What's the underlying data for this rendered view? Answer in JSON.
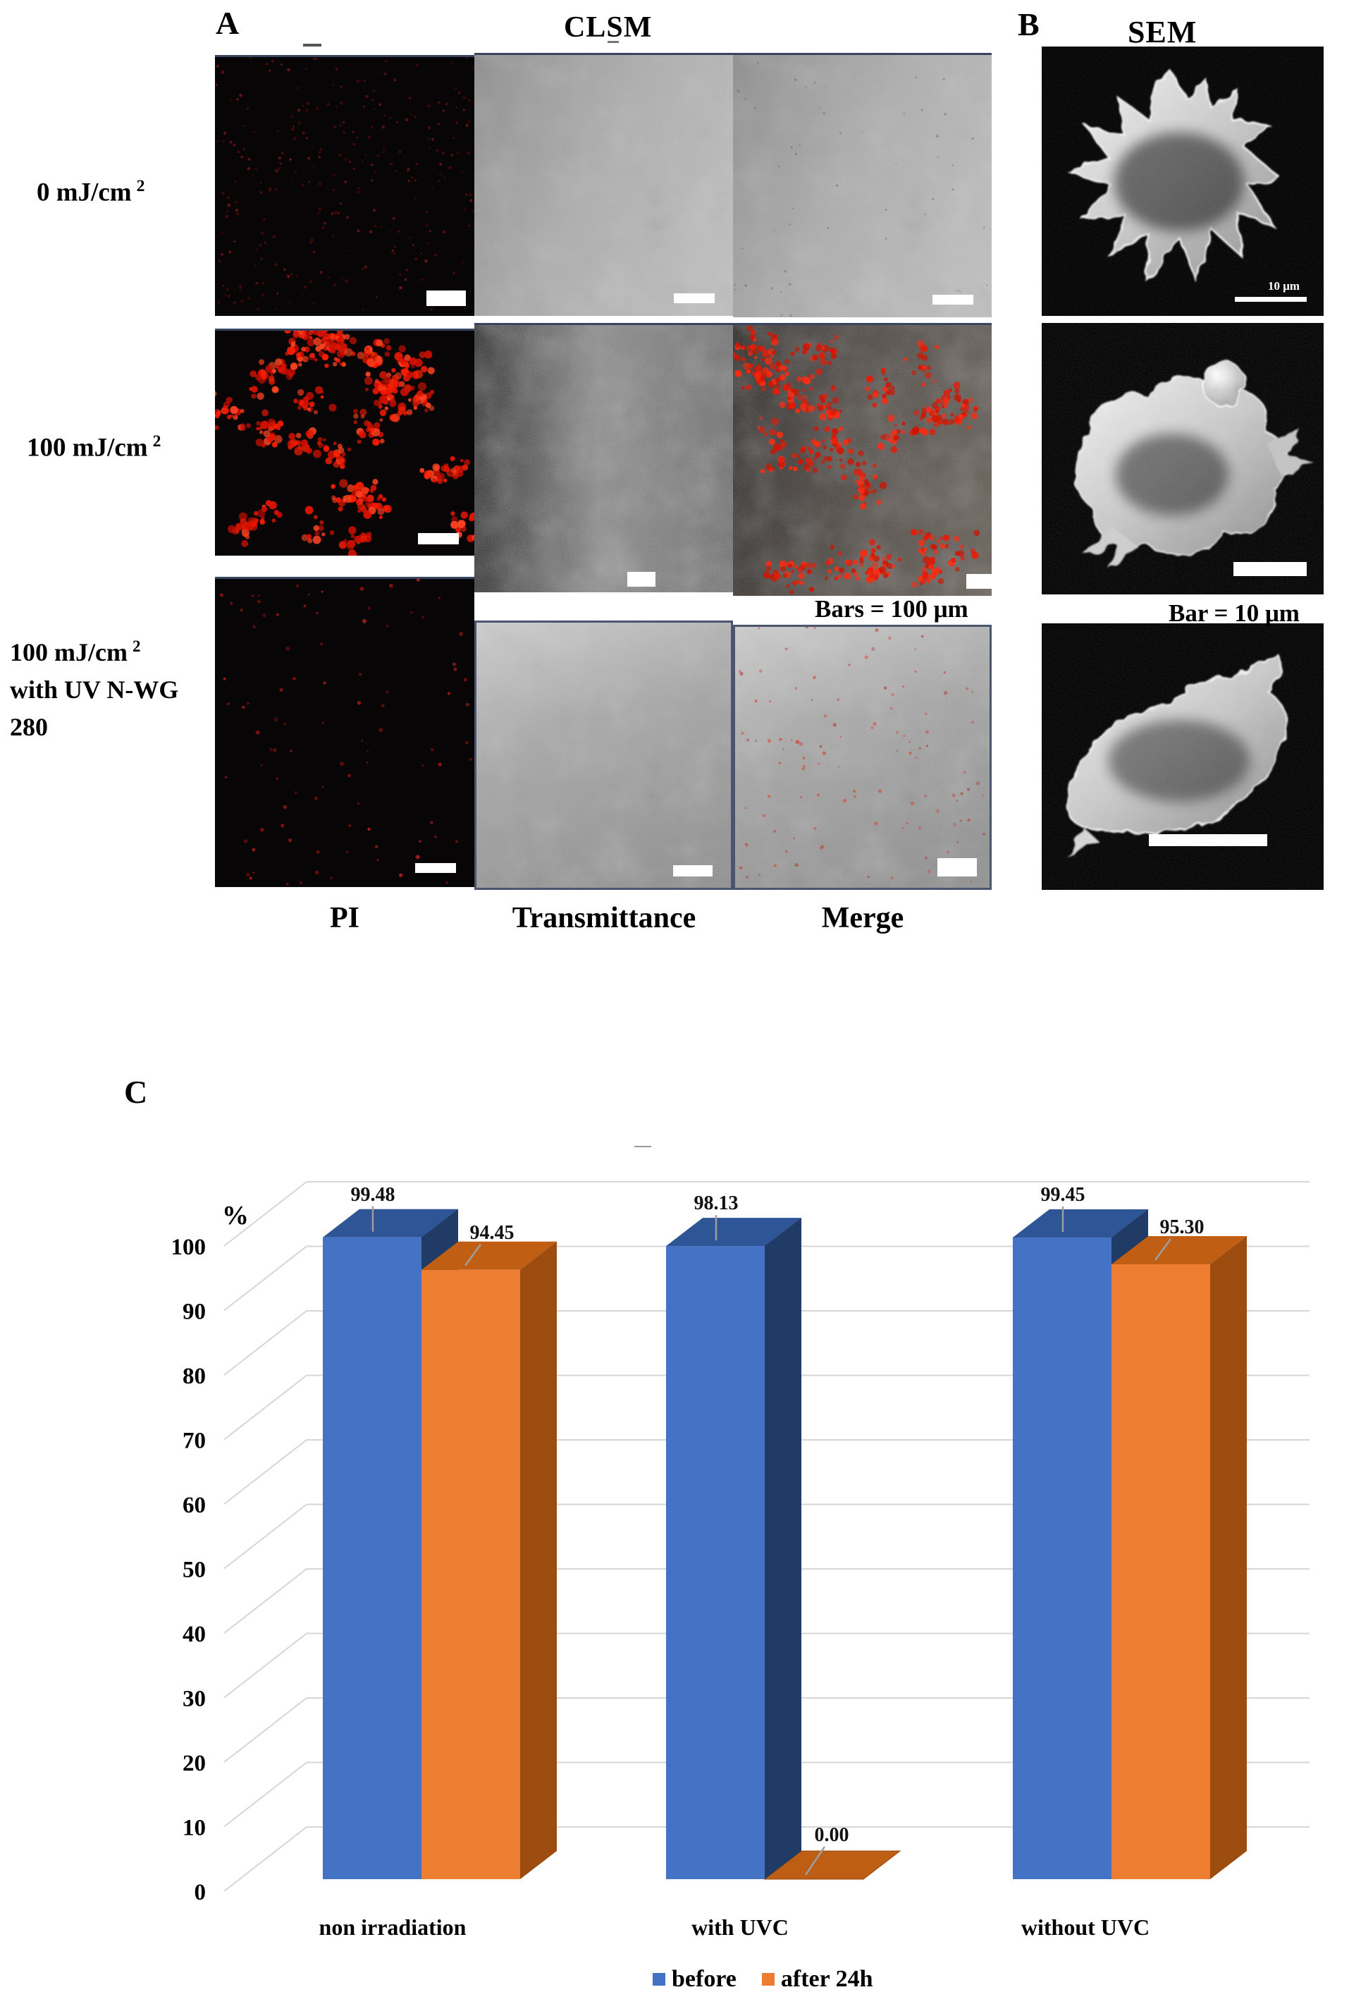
{
  "figure": {
    "panel_a_label": "A",
    "clsm_title": "CLSM",
    "panel_b_label": "B",
    "sem_title": "SEM",
    "panel_c_label": "C",
    "row_labels": [
      {
        "dose": "0 mJ/cm",
        "sup": "2"
      },
      {
        "dose": "100 mJ/cm",
        "sup": "2"
      },
      {
        "dose": "100 mJ/cm",
        "sup": "2",
        "line2": "with UV N-WG",
        "line3": "280"
      }
    ],
    "column_labels": [
      "PI",
      "Transmittance",
      "Merge"
    ],
    "scale_note_clsm": "Bars = 100 μm",
    "scale_note_sem": "Bar = 10 μm",
    "sem_inline_scale": "10 μm"
  },
  "chart_data": {
    "type": "bar",
    "variant": "3d-clustered-column",
    "title": "",
    "unit_label": "%",
    "categories": [
      "non irradiation",
      "with UVC",
      "without UVC"
    ],
    "series": [
      {
        "name": "before",
        "color": "#4472C4",
        "color_top": "#2E5596",
        "color_side": "#1F3B66",
        "values": [
          99.48,
          98.13,
          99.45
        ]
      },
      {
        "name": "after 24h",
        "color": "#ED7D31",
        "color_top": "#C05E14",
        "color_side": "#9C4C0F",
        "values": [
          94.45,
          0.0,
          95.3
        ]
      }
    ],
    "value_labels": [
      [
        "99.48",
        "98.13",
        "99.45"
      ],
      [
        "94.45",
        "0.00",
        "95.30"
      ]
    ],
    "ylim": [
      0,
      100
    ],
    "yticks": [
      0,
      10,
      20,
      30,
      40,
      50,
      60,
      70,
      80,
      90,
      100
    ],
    "grid": true,
    "legend_position": "bottom",
    "gridline_color": "#d6d6d6",
    "leader_line_color": "#9e9e9e",
    "flat_bar_color": "#BE5E15",
    "flat_bar_edge": "#94430B"
  }
}
